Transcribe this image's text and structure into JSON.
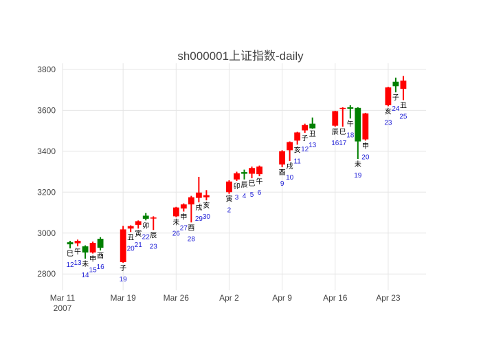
{
  "chart_data": {
    "type": "candlestick",
    "title": "sh000001上证指数-daily",
    "xlabel": "",
    "ylabel": "",
    "ylim": [
      2720,
      3830
    ],
    "xlim": [
      "2007-03-11",
      "2007-04-28"
    ],
    "y_ticks": [
      2800,
      3000,
      3200,
      3400,
      3600,
      3800
    ],
    "x_ticks": [
      {
        "date": "2007-03-11",
        "label": "Mar 11",
        "sublabel": "2007"
      },
      {
        "date": "2007-03-19",
        "label": "Mar 19",
        "sublabel": ""
      },
      {
        "date": "2007-03-26",
        "label": "Mar 26",
        "sublabel": ""
      },
      {
        "date": "2007-04-02",
        "label": "Apr 2",
        "sublabel": ""
      },
      {
        "date": "2007-04-09",
        "label": "Apr 9",
        "sublabel": ""
      },
      {
        "date": "2007-04-16",
        "label": "Apr 16",
        "sublabel": ""
      },
      {
        "date": "2007-04-23",
        "label": "Apr 23",
        "sublabel": ""
      }
    ],
    "grid": true,
    "colors": {
      "up": "#ff0000",
      "down": "#008000",
      "day_label": "#1a1ad6",
      "branch_label": "#000000",
      "grid": "#e5e5e5",
      "axis_text": "#444444"
    },
    "candles": [
      {
        "date": "2007-03-12",
        "open": 2955,
        "high": 2962,
        "low": 2925,
        "close": 2945,
        "branch": "巳",
        "day": "12"
      },
      {
        "date": "2007-03-13",
        "open": 2950,
        "high": 2968,
        "low": 2935,
        "close": 2962,
        "branch": "午",
        "day": "13"
      },
      {
        "date": "2007-03-14",
        "open": 2935,
        "high": 2940,
        "low": 2875,
        "close": 2905,
        "branch": "未",
        "day": "14"
      },
      {
        "date": "2007-03-15",
        "open": 2905,
        "high": 2958,
        "low": 2900,
        "close": 2952,
        "branch": "申",
        "day": "15"
      },
      {
        "date": "2007-03-16",
        "open": 2972,
        "high": 2980,
        "low": 2915,
        "close": 2928,
        "branch": "酉",
        "day": "16"
      },
      {
        "date": "2007-03-19",
        "open": 2858,
        "high": 3035,
        "low": 2855,
        "close": 3018,
        "branch": "子",
        "day": "19"
      },
      {
        "date": "2007-03-20",
        "open": 3022,
        "high": 3038,
        "low": 3005,
        "close": 3034,
        "branch": "丑",
        "day": "20"
      },
      {
        "date": "2007-03-21",
        "open": 3040,
        "high": 3062,
        "low": 3022,
        "close": 3058,
        "branch": "寅",
        "day": "21"
      },
      {
        "date": "2007-03-22",
        "open": 3085,
        "high": 3098,
        "low": 3062,
        "close": 3070,
        "branch": "卯",
        "day": "22"
      },
      {
        "date": "2007-03-23",
        "open": 3072,
        "high": 3082,
        "low": 3015,
        "close": 3076,
        "branch": "辰",
        "day": "23"
      },
      {
        "date": "2007-03-26",
        "open": 3082,
        "high": 3128,
        "low": 3078,
        "close": 3125,
        "branch": "未",
        "day": "26"
      },
      {
        "date": "2007-03-27",
        "open": 3120,
        "high": 3145,
        "low": 3105,
        "close": 3140,
        "branch": "申",
        "day": "27"
      },
      {
        "date": "2007-03-28",
        "open": 3140,
        "high": 3182,
        "low": 3052,
        "close": 3175,
        "branch": "酉",
        "day": "28"
      },
      {
        "date": "2007-03-29",
        "open": 3172,
        "high": 3275,
        "low": 3150,
        "close": 3198,
        "branch": "戌",
        "day": "29"
      },
      {
        "date": "2007-03-30",
        "open": 3175,
        "high": 3210,
        "low": 3160,
        "close": 3185,
        "branch": "亥",
        "day": "30"
      },
      {
        "date": "2007-04-02",
        "open": 3200,
        "high": 3258,
        "low": 3192,
        "close": 3252,
        "branch": "寅",
        "day": "2"
      },
      {
        "date": "2007-04-03",
        "open": 3262,
        "high": 3300,
        "low": 3255,
        "close": 3292,
        "branch": "卯",
        "day": "3"
      },
      {
        "date": "2007-04-04",
        "open": 3298,
        "high": 3310,
        "low": 3262,
        "close": 3290,
        "branch": "辰",
        "day": "4"
      },
      {
        "date": "2007-04-05",
        "open": 3290,
        "high": 3325,
        "low": 3268,
        "close": 3318,
        "branch": "巳",
        "day": "5"
      },
      {
        "date": "2007-04-06",
        "open": 3288,
        "high": 3330,
        "low": 3278,
        "close": 3325,
        "branch": "午",
        "day": "6"
      },
      {
        "date": "2007-04-09",
        "open": 3335,
        "high": 3405,
        "low": 3322,
        "close": 3400,
        "branch": "酉",
        "day": "9"
      },
      {
        "date": "2007-04-10",
        "open": 3405,
        "high": 3448,
        "low": 3352,
        "close": 3445,
        "branch": "戌",
        "day": "10"
      },
      {
        "date": "2007-04-11",
        "open": 3452,
        "high": 3495,
        "low": 3432,
        "close": 3492,
        "branch": "亥",
        "day": "11"
      },
      {
        "date": "2007-04-12",
        "open": 3502,
        "high": 3535,
        "low": 3490,
        "close": 3528,
        "branch": "子",
        "day": "12"
      },
      {
        "date": "2007-04-13",
        "open": 3535,
        "high": 3565,
        "low": 3510,
        "close": 3512,
        "branch": "丑",
        "day": "13"
      },
      {
        "date": "2007-04-16",
        "open": 3525,
        "high": 3598,
        "low": 3520,
        "close": 3596,
        "branch": "辰",
        "day": "16"
      },
      {
        "date": "2007-04-17",
        "open": 3608,
        "high": 3615,
        "low": 3520,
        "close": 3612,
        "branch": "巳",
        "day": "17"
      },
      {
        "date": "2007-04-18",
        "open": 3615,
        "high": 3625,
        "low": 3560,
        "close": 3608,
        "branch": "午",
        "day": "18"
      },
      {
        "date": "2007-04-19",
        "open": 3612,
        "high": 3615,
        "low": 3362,
        "close": 3448,
        "branch": "未",
        "day": "19"
      },
      {
        "date": "2007-04-20",
        "open": 3458,
        "high": 3588,
        "low": 3452,
        "close": 3585,
        "branch": "申",
        "day": "20"
      },
      {
        "date": "2007-04-23",
        "open": 3625,
        "high": 3715,
        "low": 3620,
        "close": 3712,
        "branch": "亥",
        "day": "23"
      },
      {
        "date": "2007-04-24",
        "open": 3740,
        "high": 3760,
        "low": 3688,
        "close": 3718,
        "branch": "子",
        "day": "24"
      },
      {
        "date": "2007-04-25",
        "open": 3705,
        "high": 3768,
        "low": 3650,
        "close": 3745,
        "branch": "丑",
        "day": "25"
      }
    ]
  }
}
